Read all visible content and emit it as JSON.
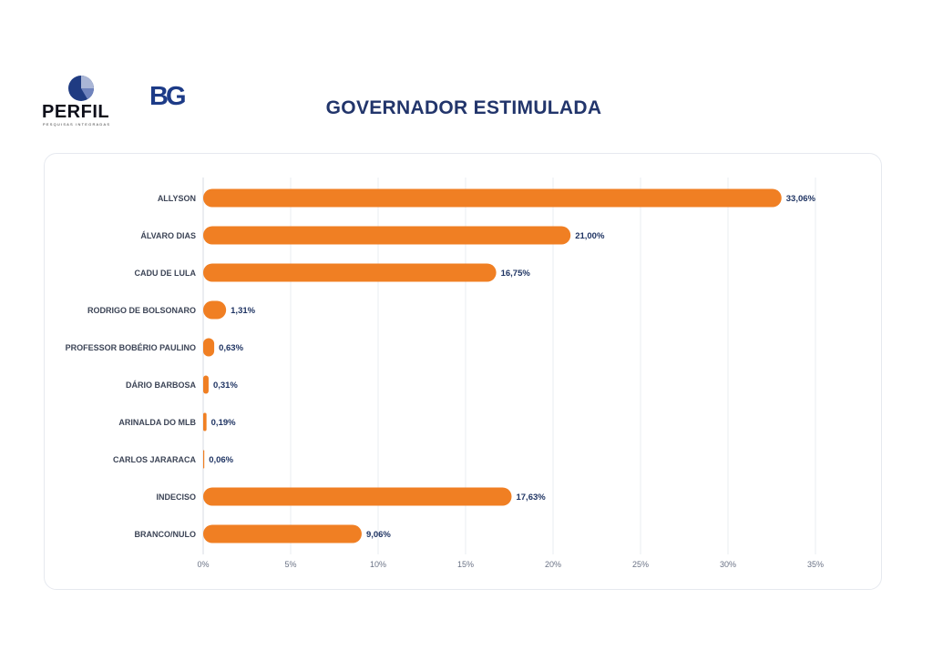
{
  "branding": {
    "perfil_name": "PERFIL",
    "perfil_tagline": "PESQUISAS INTEGRADAS",
    "bg_logo": "BG"
  },
  "colors": {
    "bar": "#f07f23",
    "title": "#22356b",
    "value_label": "#1f3463",
    "category_label": "#3c4456",
    "grid": "#e9ecf2"
  },
  "chart_data": {
    "type": "bar",
    "orientation": "horizontal",
    "title": "GOVERNADOR ESTIMULADA",
    "categories": [
      "ALLYSON",
      "ÁLVARO DIAS",
      "CADU DE LULA",
      "RODRIGO DE BOLSONARO",
      "PROFESSOR BOBÉRIO PAULINO",
      "DÁRIO BARBOSA",
      "ARINALDA DO MLB",
      "CARLOS JARARACA",
      "INDECISO",
      "BRANCO/NULO"
    ],
    "values": [
      33.06,
      21.0,
      16.75,
      1.31,
      0.63,
      0.31,
      0.19,
      0.06,
      17.63,
      9.06
    ],
    "value_labels": [
      "33,06%",
      "21,00%",
      "16,75%",
      "1,31%",
      "0,63%",
      "0,31%",
      "0,19%",
      "0,06%",
      "17,63%",
      "9,06%"
    ],
    "xlim": [
      0,
      35
    ],
    "x_ticks": [
      0,
      5,
      10,
      15,
      20,
      25,
      30,
      35
    ],
    "x_tick_labels": [
      "0%",
      "5%",
      "10%",
      "15%",
      "20%",
      "25%",
      "30%",
      "35%"
    ],
    "grid": true,
    "legend": "none"
  }
}
